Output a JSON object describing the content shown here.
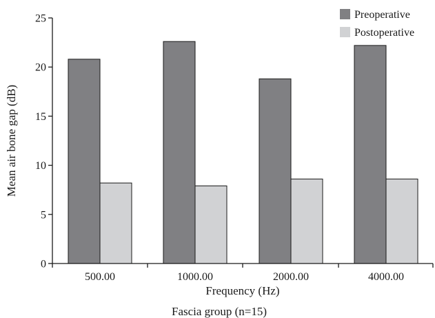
{
  "chart_data": {
    "type": "bar",
    "categories": [
      "500.00",
      "1000.00",
      "2000.00",
      "4000.00"
    ],
    "series": [
      {
        "name": "Preoperative",
        "values": [
          20.8,
          22.6,
          18.8,
          22.2
        ],
        "color": "#808083"
      },
      {
        "name": "Postoperative",
        "values": [
          8.2,
          7.9,
          8.6,
          8.6
        ],
        "color": "#d1d2d4"
      }
    ],
    "title": "",
    "xlabel": "Frequency (Hz)",
    "ylabel": "Mean air bone gap (dB)",
    "subtitle_below": "Fascia group (n=15)",
    "ylim": [
      0,
      25
    ],
    "yticks": [
      0,
      5,
      10,
      15,
      20,
      25
    ],
    "legend_position": "top-right",
    "grid": false
  }
}
